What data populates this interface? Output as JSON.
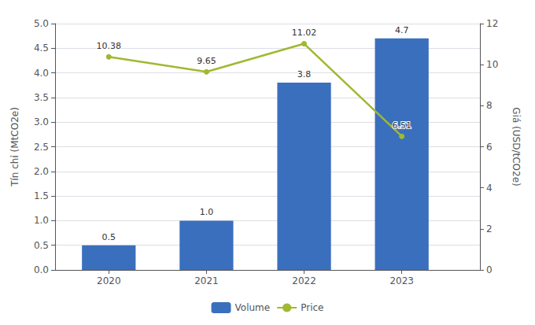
{
  "chart_data": {
    "type": "bar",
    "x": [
      2020,
      2021,
      2022,
      2023
    ],
    "xlim": [
      2019.45,
      2023.8
    ],
    "xticks": [
      2020,
      2021,
      2022,
      2023
    ],
    "ylabel": "Tín chỉ (MtCO2e)",
    "y2label": "Giá (USD/tCO2e)",
    "ylim": [
      0,
      5
    ],
    "yticks": [
      {
        "value": 0,
        "label": "0.0"
      },
      0.5,
      {
        "value": 1,
        "label": "1.0"
      },
      1.5,
      {
        "value": 2,
        "label": "2.0"
      },
      2.5,
      {
        "value": 3,
        "label": "3.0"
      },
      3.5,
      {
        "value": 4,
        "label": "4.0"
      },
      4.5,
      {
        "value": 5,
        "label": "5.0"
      }
    ],
    "y2lim": [
      0,
      12
    ],
    "y2ticks": [
      0,
      2,
      4,
      6,
      8,
      10,
      12
    ],
    "grid": true,
    "legend": "bottom",
    "data_labels": true,
    "series": [
      {
        "name": "Volume",
        "type": "bar",
        "color": "#3a6fbe",
        "values": [
          0.5,
          1.0,
          3.8,
          4.7
        ],
        "value_labels": [
          "0.5",
          "1.0",
          "3.8",
          "4.7"
        ]
      },
      {
        "name": "Price",
        "type": "line",
        "axis": "y2",
        "color": "#a0b832",
        "marker": "circle",
        "values": [
          10.38,
          9.65,
          11.02,
          6.51
        ]
      }
    ]
  }
}
